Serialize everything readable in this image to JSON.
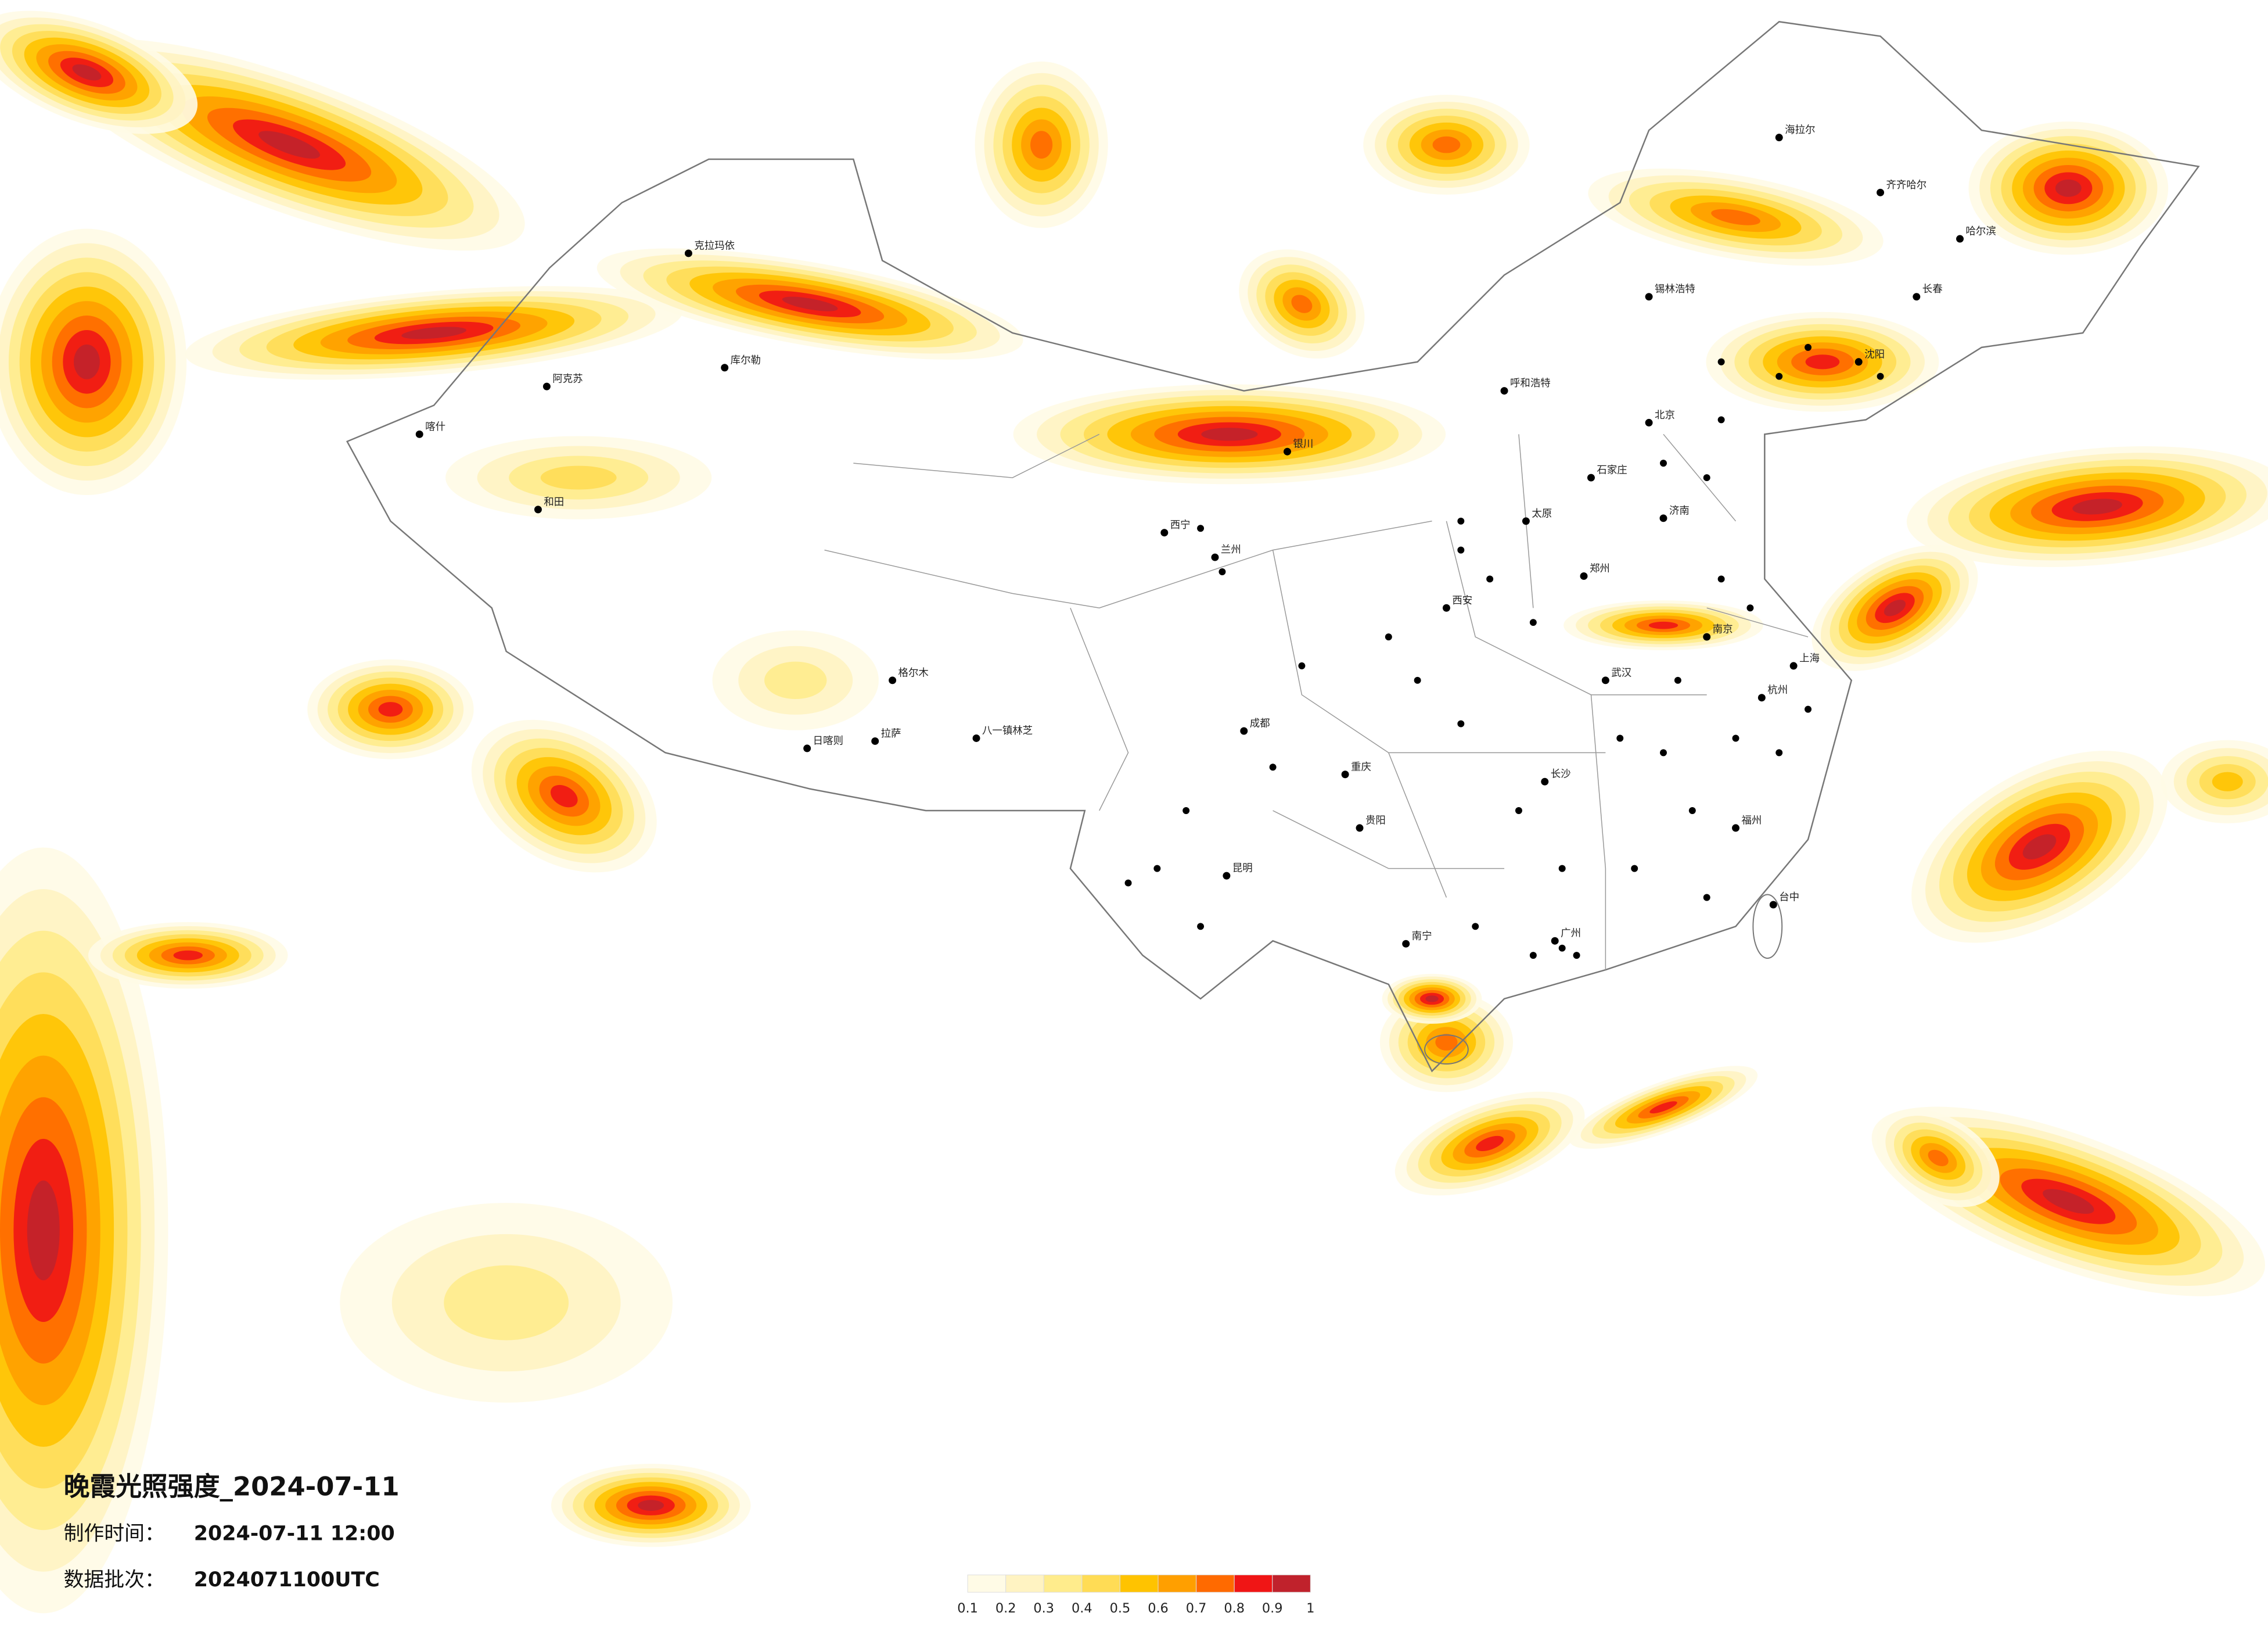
{
  "header": {
    "title": "晚霞光照强度_2024-07-11",
    "made_label": "制作时间：",
    "made_value": "2024-07-11 12:00",
    "batch_label": "数据批次：",
    "batch_value": "2024071100UTC"
  },
  "legend": {
    "ticks": [
      0.1,
      0.2,
      0.3,
      0.4,
      0.5,
      0.6,
      0.7,
      0.8,
      0.9,
      1
    ],
    "colors": [
      "#fffbe6",
      "#fff3c2",
      "#ffec8c",
      "#ffdc55",
      "#ffc300",
      "#ff9f00",
      "#ff6a00",
      "#f01515",
      "#c0222c"
    ]
  },
  "cities": [
    "克拉玛依",
    "阿克苏",
    "喀什",
    "和田",
    "库尔勒",
    "日喀则",
    "拉萨",
    "八一镇林芝",
    "格尔木",
    "西宁",
    "兰州",
    "银川",
    "呼和浩特",
    "锡林浩特",
    "海拉尔",
    "齐齐哈尔",
    "哈尔滨",
    "长春",
    "沈阳",
    "北京",
    "石家庄",
    "太原",
    "济南",
    "郑州",
    "西安",
    "成都",
    "重庆",
    "贵阳",
    "昆明",
    "南宁",
    "长沙",
    "武汉",
    "南京",
    "上海",
    "杭州",
    "福州",
    "广州",
    "台中"
  ]
}
